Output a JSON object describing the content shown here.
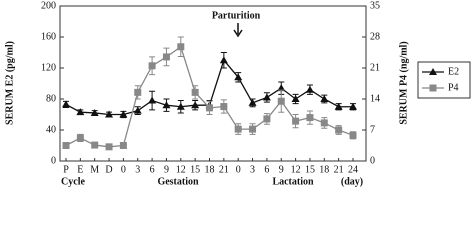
{
  "chart_data": {
    "type": "line",
    "ylabel": "SERUM E2 (pg/ml)",
    "y2label": "SERUM P4 (ng/ml)",
    "annotation": "Parturition",
    "x_groups": [
      "Cycle",
      "Gestation",
      "Lactation"
    ],
    "x_unit": "(day)",
    "categories": [
      "P",
      "E",
      "M",
      "D",
      "0",
      "3",
      "6",
      "9",
      "12",
      "15",
      "18",
      "21",
      "0",
      "3",
      "6",
      "9",
      "12",
      "15",
      "18",
      "21",
      "24"
    ],
    "ylim": [
      0,
      200
    ],
    "yticks": [
      0,
      40,
      80,
      120,
      160,
      200
    ],
    "y2lim": [
      0,
      35
    ],
    "y2ticks": [
      0,
      7,
      14,
      21,
      28,
      35
    ],
    "legend": "right",
    "series": [
      {
        "name": "E2",
        "color": "#111111",
        "marker": "triangle",
        "values": [
          73,
          63,
          62,
          60,
          60,
          65,
          78,
          72,
          70,
          72,
          72,
          130,
          108,
          75,
          82,
          94,
          80,
          92,
          80,
          70,
          70
        ],
        "errors": [
          4,
          3,
          3,
          3,
          4,
          5,
          12,
          8,
          8,
          6,
          6,
          10,
          6,
          5,
          6,
          8,
          6,
          6,
          5,
          4,
          4
        ]
      },
      {
        "name": "P4",
        "color": "#888888",
        "marker": "square",
        "axis": "y2",
        "values": [
          3.5,
          5.2,
          3.6,
          3.2,
          3.5,
          15.5,
          21.5,
          23.5,
          25.8,
          15.5,
          12,
          12.3,
          7.2,
          7.2,
          9.5,
          13.5,
          9,
          9.8,
          8.6,
          7,
          5.8
        ],
        "errors": [
          0.5,
          0.8,
          0.5,
          0.5,
          0.6,
          1.5,
          2,
          2,
          2.2,
          1.5,
          1.5,
          1.5,
          1.2,
          1.2,
          1.2,
          2.5,
          1.5,
          1.5,
          1.2,
          1,
          0.8
        ]
      }
    ]
  }
}
